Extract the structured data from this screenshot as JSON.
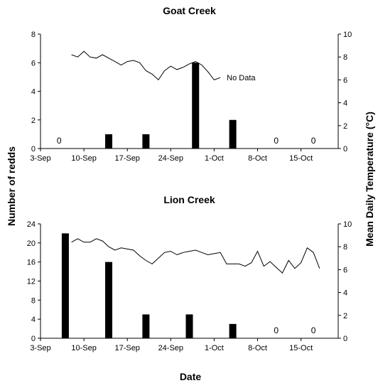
{
  "figure": {
    "ylabel_left": "Number of redds",
    "ylabel_right": "Mean Daily Temperature (°C)",
    "xlabel": "Date"
  },
  "chart_data": [
    {
      "type": "bar",
      "title": "Goat Creek",
      "xlabel": "Date",
      "ylabel": "Number of redds",
      "ylabel_right": "Mean Daily Temperature (°C)",
      "x_ticks": [
        "3-Sep",
        "10-Sep",
        "17-Sep",
        "24-Sep",
        "1-Oct",
        "8-Oct",
        "15-Oct"
      ],
      "xlim": [
        "3-Sep",
        "21-Oct"
      ],
      "ylim": [
        0,
        8
      ],
      "yticks": [
        0,
        2,
        4,
        6,
        8
      ],
      "ylim_right": [
        0,
        10
      ],
      "yticks_right": [
        0,
        2,
        4,
        6,
        8,
        10
      ],
      "bars": [
        {
          "date": "6-Sep",
          "redds": 0
        },
        {
          "date": "14-Sep",
          "redds": 1
        },
        {
          "date": "20-Sep",
          "redds": 1
        },
        {
          "date": "28-Sep",
          "redds": 6
        },
        {
          "date": "4-Oct",
          "redds": 2
        },
        {
          "date": "11-Oct",
          "redds": 0
        },
        {
          "date": "17-Oct",
          "redds": 0
        }
      ],
      "temperature": {
        "dates": [
          "8-Sep",
          "9-Sep",
          "10-Sep",
          "11-Sep",
          "12-Sep",
          "13-Sep",
          "14-Sep",
          "15-Sep",
          "16-Sep",
          "17-Sep",
          "18-Sep",
          "19-Sep",
          "20-Sep",
          "21-Sep",
          "22-Sep",
          "23-Sep",
          "24-Sep",
          "25-Sep",
          "26-Sep",
          "27-Sep",
          "28-Sep",
          "29-Sep",
          "30-Sep",
          "1-Oct",
          "2-Oct"
        ],
        "values": [
          8.2,
          8.0,
          8.5,
          8.0,
          7.9,
          8.2,
          7.9,
          7.6,
          7.3,
          7.6,
          7.7,
          7.5,
          6.8,
          6.5,
          6.0,
          6.8,
          7.2,
          6.9,
          7.1,
          7.4,
          7.6,
          7.3,
          6.7,
          6.0,
          6.2
        ]
      },
      "annotation": "No Data",
      "zero_label": "0"
    },
    {
      "type": "bar",
      "title": "Lion Creek",
      "xlabel": "Date",
      "ylabel": "Number of redds",
      "ylabel_right": "Mean Daily Temperature (°C)",
      "x_ticks": [
        "3-Sep",
        "10-Sep",
        "17-Sep",
        "24-Sep",
        "1-Oct",
        "8-Oct",
        "15-Oct"
      ],
      "xlim": [
        "3-Sep",
        "21-Oct"
      ],
      "ylim": [
        0,
        24
      ],
      "yticks": [
        0,
        4,
        8,
        12,
        16,
        20,
        24
      ],
      "ylim_right": [
        0,
        10
      ],
      "yticks_right": [
        0,
        2,
        4,
        6,
        8,
        10
      ],
      "bars": [
        {
          "date": "7-Sep",
          "redds": 22
        },
        {
          "date": "14-Sep",
          "redds": 16
        },
        {
          "date": "20-Sep",
          "redds": 5
        },
        {
          "date": "27-Sep",
          "redds": 5
        },
        {
          "date": "4-Oct",
          "redds": 3
        },
        {
          "date": "11-Oct",
          "redds": 0
        },
        {
          "date": "17-Oct",
          "redds": 0
        }
      ],
      "temperature": {
        "dates": [
          "8-Sep",
          "9-Sep",
          "10-Sep",
          "11-Sep",
          "12-Sep",
          "13-Sep",
          "14-Sep",
          "15-Sep",
          "16-Sep",
          "17-Sep",
          "18-Sep",
          "19-Sep",
          "20-Sep",
          "21-Sep",
          "22-Sep",
          "23-Sep",
          "24-Sep",
          "25-Sep",
          "26-Sep",
          "27-Sep",
          "28-Sep",
          "29-Sep",
          "30-Sep",
          "1-Oct",
          "2-Oct",
          "3-Oct",
          "4-Oct",
          "5-Oct",
          "6-Oct",
          "7-Oct",
          "8-Oct",
          "9-Oct",
          "10-Oct",
          "11-Oct",
          "12-Oct",
          "13-Oct",
          "14-Oct",
          "15-Oct",
          "16-Oct",
          "17-Oct",
          "18-Oct"
        ],
        "values": [
          8.4,
          8.7,
          8.4,
          8.4,
          8.7,
          8.5,
          8.0,
          7.7,
          7.9,
          7.8,
          7.7,
          7.2,
          6.8,
          6.5,
          7.0,
          7.5,
          7.6,
          7.3,
          7.5,
          7.6,
          7.7,
          7.5,
          7.3,
          7.4,
          7.5,
          6.5,
          6.5,
          6.5,
          6.3,
          6.6,
          7.6,
          6.3,
          6.7,
          6.2,
          5.7,
          6.8,
          6.1,
          6.6,
          7.9,
          7.5,
          6.1
        ]
      },
      "zero_label": "0"
    }
  ]
}
